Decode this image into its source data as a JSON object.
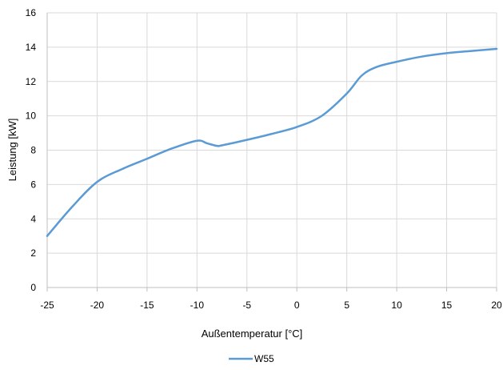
{
  "chart_data": {
    "type": "line",
    "title": "",
    "xlabel": "Außentemperatur [°C]",
    "ylabel": "Leistung [kW]",
    "xlim": [
      -25,
      20
    ],
    "ylim": [
      0,
      16
    ],
    "x_ticks": [
      "-25",
      "-20",
      "-15",
      "-10",
      "-5",
      "0",
      "5",
      "10",
      "15",
      "20"
    ],
    "y_ticks": [
      "0",
      "2",
      "4",
      "6",
      "8",
      "10",
      "12",
      "14",
      "16"
    ],
    "grid": true,
    "legend_position": "bottom",
    "series": [
      {
        "name": "W55",
        "color": "#5B9BD5",
        "x": [
          -25,
          -22.5,
          -20,
          -17.5,
          -15,
          -12.5,
          -10,
          -9,
          -8,
          -7.5,
          -5,
          -2.5,
          0,
          2.5,
          5,
          6.5,
          8,
          10,
          12.5,
          15,
          17.5,
          20
        ],
        "y": [
          3.0,
          4.7,
          6.15,
          6.9,
          7.5,
          8.1,
          8.55,
          8.4,
          8.25,
          8.28,
          8.6,
          8.95,
          9.35,
          10.0,
          11.3,
          12.35,
          12.85,
          13.15,
          13.45,
          13.65,
          13.78,
          13.9
        ]
      }
    ]
  }
}
